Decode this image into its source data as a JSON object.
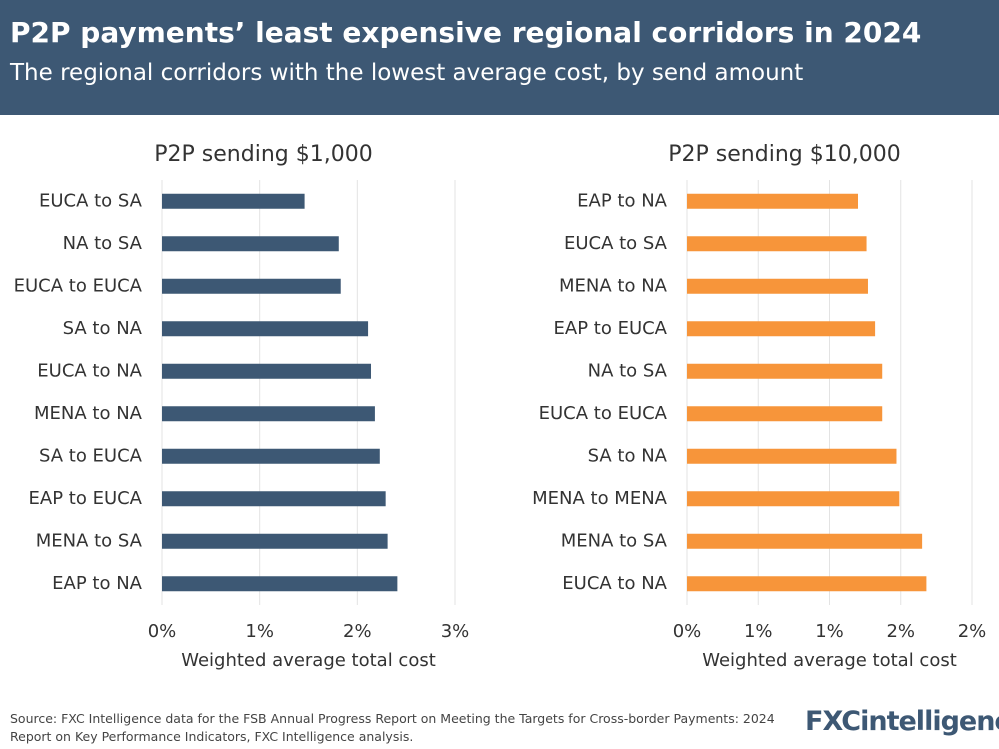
{
  "header": {
    "title": "P2P payments’ least expensive regional corridors in 2024",
    "subtitle": "The regional corridors with the lowest average cost, by send amount"
  },
  "chart_data": [
    {
      "type": "bar",
      "orientation": "horizontal",
      "title": "P2P sending $1,000",
      "x_label": "Weighted average total cost",
      "categories": [
        "EUCA to SA",
        "NA to SA",
        "EUCA to EUCA",
        "SA to NA",
        "EUCA to NA",
        "MENA to NA",
        "SA to EUCA",
        "EAP to EUCA",
        "MENA to SA",
        "EAP to NA"
      ],
      "values": [
        1.46,
        1.81,
        1.83,
        2.11,
        2.14,
        2.18,
        2.23,
        2.29,
        2.31,
        2.41
      ],
      "color": "#3d5874",
      "xlim": [
        0,
        3
      ],
      "xticks": [
        {
          "value": 0,
          "label": "0%"
        },
        {
          "value": 1,
          "label": "1%"
        },
        {
          "value": 2,
          "label": "2%"
        },
        {
          "value": 3,
          "label": "3%"
        }
      ],
      "grid": true
    },
    {
      "type": "bar",
      "orientation": "horizontal",
      "title": "P2P sending $10,000",
      "x_label": "Weighted average total cost",
      "categories": [
        "EAP to NA",
        "EUCA to SA",
        "MENA to NA",
        "EAP to EUCA",
        "NA to SA",
        "EUCA to EUCA",
        "SA to NA",
        "MENA to MENA",
        "MENA to SA",
        "EUCA to NA"
      ],
      "values": [
        1.2,
        1.26,
        1.27,
        1.32,
        1.37,
        1.37,
        1.47,
        1.49,
        1.65,
        1.68
      ],
      "color": "#f7953a",
      "xlim": [
        0,
        2
      ],
      "xticks": [
        {
          "value": 0,
          "label": "0%"
        },
        {
          "value": 0.5,
          "label": "1%"
        },
        {
          "value": 1,
          "label": "1%"
        },
        {
          "value": 1.5,
          "label": "2%"
        },
        {
          "value": 2,
          "label": "2%"
        }
      ],
      "grid": true
    }
  ],
  "footer": {
    "source": "Source: FXC Intelligence data for the FSB Annual Progress Report on Meeting the Targets for Cross-border Payments: 2024 Report on Key Performance Indicators, FXC Intelligence analysis.",
    "logo": "FXCintelligence"
  }
}
